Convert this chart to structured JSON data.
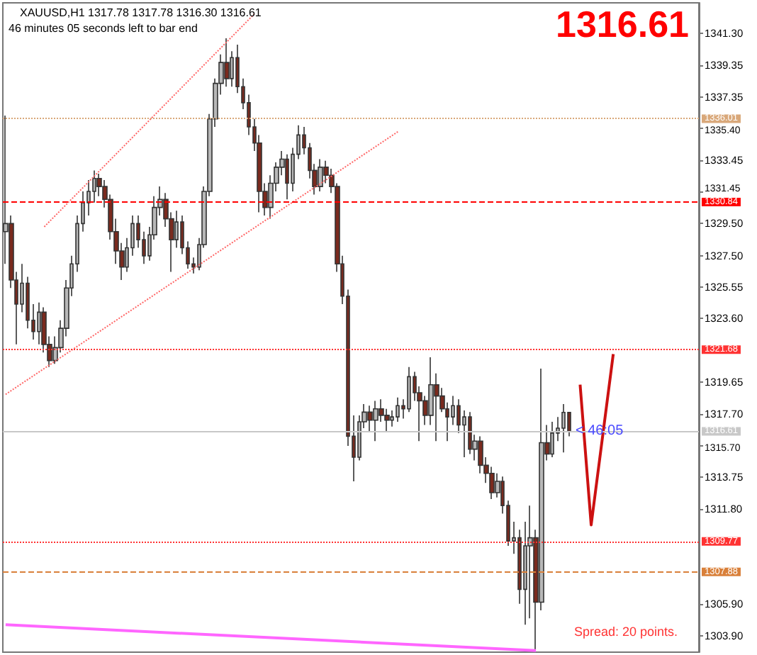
{
  "chart_data": {
    "type": "candlestick",
    "categories": [
      null,
      null,
      null,
      null,
      null,
      null,
      null,
      null,
      null,
      null,
      null,
      null,
      null,
      null,
      null,
      null,
      null,
      null,
      null,
      null,
      null,
      null,
      null,
      null,
      null,
      null,
      null,
      null,
      null,
      null,
      null,
      null,
      null,
      null,
      null,
      null,
      null,
      null,
      null,
      null,
      null,
      null,
      null,
      null,
      null,
      null,
      null,
      null,
      null,
      null,
      null,
      null,
      null,
      null,
      null,
      null,
      null,
      null,
      null,
      null,
      null,
      null,
      null,
      null,
      null,
      null,
      null,
      null,
      null,
      null,
      null,
      null,
      null,
      null,
      null,
      null,
      null,
      null,
      null,
      null,
      null,
      null,
      null,
      null,
      null,
      null,
      null,
      null,
      null,
      null,
      null,
      null,
      null,
      null,
      null,
      null,
      null,
      null,
      null,
      null,
      null,
      null,
      null,
      null,
      null,
      null,
      null,
      null,
      null,
      null,
      null,
      null,
      null,
      null,
      null,
      null,
      null,
      null,
      null,
      null,
      null,
      null,
      null,
      null,
      null,
      null
    ],
    "ylim": [
      1302.9,
      1343.2
    ],
    "yticks": [
      {
        "value": 1303.9,
        "label": "1303.90"
      },
      {
        "value": 1305.9,
        "label": "1305.90"
      },
      {
        "value": 1311.8,
        "label": "1311.80"
      },
      {
        "value": 1313.75,
        "label": "1313.75"
      },
      {
        "value": 1315.7,
        "label": "1315.70"
      },
      {
        "value": 1317.7,
        "label": "1317.70"
      },
      {
        "value": 1319.65,
        "label": "1319.65"
      },
      {
        "value": 1323.6,
        "label": "1323.60"
      },
      {
        "value": 1325.55,
        "label": "1325.55"
      },
      {
        "value": 1327.5,
        "label": "1327.50"
      },
      {
        "value": 1329.5,
        "label": "1329.50"
      },
      {
        "value": 1331.45,
        "label": "1331.45"
      },
      {
        "value": 1333.45,
        "label": "1333.45"
      },
      {
        "value": 1335.4,
        "label": "1335.40"
      },
      {
        "value": 1337.35,
        "label": "1337.35"
      },
      {
        "value": 1339.35,
        "label": "1339.35"
      },
      {
        "value": 1341.3,
        "label": "1341.30"
      }
    ],
    "tick_labels": "y",
    "grid": false,
    "series": [
      {
        "colors": [
          "#b8b8b8",
          "#7a2a1e",
          "#7a2a1e",
          "#b8b8b8",
          "#7a2a1e",
          "#7a2a1e",
          "#b8b8b8",
          "#7a2a1e",
          "#7a2a1e",
          "#b8b8b8",
          "#b8b8b8",
          "#b8b8b8",
          "#b8b8b8",
          "#b8b8b8",
          "#b8b8b8",
          "#b8b8b8",
          "#b8b8b8",
          "#7a2a1e",
          "#7a2a1e",
          "#7a2a1e",
          "#7a2a1e",
          "#7a2a1e",
          "#b8b8b8",
          "#b8b8b8",
          "#7a2a1e",
          "#7a2a1e",
          "#b8b8b8",
          "#b8b8b8",
          "#b8b8b8",
          "#7a2a1e",
          "#7a2a1e",
          "#b8b8b8",
          "#7a2a1e",
          "#7a2a1e",
          "#7a2a1e",
          "#b8b8b8",
          "#b8b8b8",
          "#b8b8b8",
          "#b8b8b8",
          "#b8b8b8",
          "#7a2a1e",
          "#b8b8b8",
          "#7a2a1e",
          "#7a2a1e",
          "#7a2a1e",
          "#7a2a1e",
          "#7a2a1e",
          "#7a2a1e",
          "#b8b8b8",
          "#b8b8b8",
          "#b8b8b8",
          "#7a2a1e",
          "#b8b8b8",
          "#b8b8b8",
          "#7a2a1e",
          "#7a2a1e",
          "#7a2a1e",
          "#b8b8b8",
          "#7a2a1e",
          "#7a2a1e",
          "#7a2a1e",
          "#7a2a1e",
          "#7a2a1e",
          "#7a2a1e",
          "#b8b8b8",
          "#b8b8b8",
          "#7a2a1e",
          "#b8b8b8",
          "#7a2a1e",
          "#7a2a1e",
          "#b8b8b8",
          "#b8b8b8",
          "#7a2a1e",
          "#b8b8b8",
          "#7a2a1e",
          "#7a2a1e",
          "#7a2a1e",
          "#b8b8b8",
          "#7a2a1e",
          "#7a2a1e",
          "#7a2a1e",
          "#b8b8b8",
          "#7a2a1e",
          "#b8b8b8",
          "#7a2a1e",
          "#b8b8b8",
          "#7a2a1e",
          "#7a2a1e",
          "#7a2a1e",
          "#b8b8b8",
          "#7a2a1e",
          "#7a2a1e",
          "#b8b8b8",
          "#7a2a1e",
          "#b8b8b8",
          "#b8b8b8",
          "#7a2a1e",
          "#b8b8b8",
          "#7a2a1e",
          "#b8b8b8",
          "#b8b8b8",
          "#b8b8b8",
          "#7a2a1e",
          null,
          null,
          null,
          null,
          null,
          null,
          null,
          null,
          null,
          null,
          null,
          null,
          null,
          null,
          null,
          null,
          null,
          null,
          null,
          null,
          null,
          null,
          null
        ],
        "ohlc": [
          [
            1329.0,
            1336.2,
            1327.0,
            1329.5
          ],
          [
            1329.5,
            1330.0,
            1325.5,
            1326.0
          ],
          [
            1326.0,
            1326.5,
            1322.0,
            1324.5
          ],
          [
            1324.5,
            1327.0,
            1324.0,
            1325.8
          ],
          [
            1325.8,
            1326.2,
            1323.0,
            1323.5
          ],
          [
            1323.5,
            1324.5,
            1322.3,
            1322.8
          ],
          [
            1322.8,
            1324.6,
            1322.0,
            1324.0
          ],
          [
            1324.0,
            1324.3,
            1321.5,
            1322.0
          ],
          [
            1322.0,
            1322.5,
            1320.6,
            1321.0
          ],
          [
            1321.0,
            1322.5,
            1320.8,
            1321.8
          ],
          [
            1321.8,
            1323.5,
            1321.5,
            1323.0
          ],
          [
            1323.0,
            1326.0,
            1322.5,
            1325.5
          ],
          [
            1325.5,
            1327.5,
            1325.0,
            1327.0
          ],
          [
            1327.0,
            1330.0,
            1326.5,
            1329.5
          ],
          [
            1329.5,
            1331.5,
            1329.0,
            1330.8
          ],
          [
            1330.8,
            1332.2,
            1330.0,
            1331.5
          ],
          [
            1331.5,
            1332.8,
            1330.8,
            1332.3
          ],
          [
            1332.3,
            1332.6,
            1331.2,
            1331.8
          ],
          [
            1331.8,
            1332.2,
            1330.5,
            1331.0
          ],
          [
            1331.0,
            1331.3,
            1328.5,
            1329.0
          ],
          [
            1329.0,
            1329.8,
            1327.0,
            1327.8
          ],
          [
            1327.8,
            1328.3,
            1326.0,
            1326.8
          ],
          [
            1326.8,
            1328.6,
            1326.5,
            1328.0
          ],
          [
            1328.0,
            1330.0,
            1327.5,
            1329.5
          ],
          [
            1329.5,
            1330.0,
            1328.0,
            1328.5
          ],
          [
            1328.5,
            1329.0,
            1327.0,
            1327.5
          ],
          [
            1327.5,
            1329.3,
            1327.2,
            1328.8
          ],
          [
            1328.8,
            1331.2,
            1328.5,
            1330.5
          ],
          [
            1330.5,
            1331.8,
            1330.0,
            1331.0
          ],
          [
            1331.0,
            1331.4,
            1329.3,
            1329.8
          ],
          [
            1329.8,
            1330.2,
            1326.5,
            1328.5
          ],
          [
            1328.5,
            1330.3,
            1328.0,
            1329.6
          ],
          [
            1329.6,
            1330.0,
            1327.6,
            1328.0
          ],
          [
            1328.0,
            1328.4,
            1326.7,
            1327.0
          ],
          [
            1327.0,
            1327.4,
            1326.4,
            1326.8
          ],
          [
            1326.8,
            1328.6,
            1326.6,
            1328.2
          ],
          [
            1328.2,
            1331.8,
            1328.0,
            1331.5
          ],
          [
            1331.5,
            1336.3,
            1331.2,
            1336.0
          ],
          [
            1336.0,
            1338.5,
            1335.5,
            1338.2
          ],
          [
            1338.2,
            1340.0,
            1337.5,
            1339.5
          ],
          [
            1339.5,
            1341.0,
            1338.0,
            1338.5
          ],
          [
            1338.5,
            1340.2,
            1338.0,
            1339.8
          ],
          [
            1339.8,
            1340.6,
            1337.6,
            1338.0
          ],
          [
            1338.0,
            1338.5,
            1336.6,
            1337.0
          ],
          [
            1337.0,
            1337.5,
            1335.0,
            1335.5
          ],
          [
            1335.5,
            1336.0,
            1334.0,
            1334.5
          ],
          [
            1334.5,
            1335.0,
            1330.2,
            1331.5
          ],
          [
            1331.5,
            1332.0,
            1330.0,
            1330.5
          ],
          [
            1330.5,
            1332.5,
            1329.8,
            1332.0
          ],
          [
            1332.0,
            1333.3,
            1331.5,
            1333.0
          ],
          [
            1333.0,
            1334.0,
            1332.5,
            1333.5
          ],
          [
            1333.5,
            1333.8,
            1331.0,
            1332.0
          ],
          [
            1332.0,
            1334.2,
            1331.5,
            1333.8
          ],
          [
            1333.8,
            1335.6,
            1333.5,
            1335.0
          ],
          [
            1335.0,
            1335.5,
            1333.8,
            1334.2
          ],
          [
            1334.2,
            1334.5,
            1332.3,
            1332.8
          ],
          [
            1332.8,
            1333.2,
            1331.3,
            1331.8
          ],
          [
            1331.8,
            1333.5,
            1331.5,
            1333.0
          ],
          [
            1333.0,
            1333.4,
            1332.0,
            1332.5
          ],
          [
            1332.5,
            1332.9,
            1331.4,
            1331.8
          ],
          [
            1331.8,
            1332.0,
            1326.5,
            1327.0
          ],
          [
            1327.0,
            1327.5,
            1324.5,
            1325.0
          ],
          [
            1325.0,
            1325.4,
            1315.7,
            1316.3
          ],
          [
            1316.3,
            1317.6,
            1313.5,
            1315.0
          ],
          [
            1315.0,
            1317.6,
            1314.8,
            1317.2
          ],
          [
            1317.2,
            1318.3,
            1316.8,
            1317.8
          ],
          [
            1317.8,
            1318.2,
            1316.6,
            1317.3
          ],
          [
            1317.3,
            1318.5,
            1316.0,
            1318.0
          ],
          [
            1318.0,
            1318.6,
            1317.2,
            1317.6
          ],
          [
            1317.6,
            1318.0,
            1316.6,
            1317.3
          ],
          [
            1317.3,
            1317.9,
            1316.9,
            1317.5
          ],
          [
            1317.5,
            1318.7,
            1317.2,
            1318.2
          ],
          [
            1318.2,
            1318.6,
            1317.4,
            1318.0
          ],
          [
            1318.0,
            1320.6,
            1317.8,
            1320.0
          ],
          [
            1320.0,
            1320.3,
            1318.5,
            1319.0
          ],
          [
            1319.0,
            1319.4,
            1316.0,
            1318.5
          ],
          [
            1318.5,
            1318.8,
            1317.0,
            1317.6
          ],
          [
            1317.6,
            1321.2,
            1317.0,
            1319.5
          ],
          [
            1319.5,
            1320.2,
            1316.0,
            1318.8
          ],
          [
            1318.8,
            1319.3,
            1317.8,
            1318.0
          ],
          [
            1318.0,
            1318.4,
            1316.0,
            1317.5
          ],
          [
            1317.5,
            1318.8,
            1317.0,
            1318.2
          ],
          [
            1318.2,
            1318.6,
            1316.5,
            1317.0
          ],
          [
            1317.0,
            1317.9,
            1315.0,
            1317.5
          ],
          [
            1317.5,
            1317.8,
            1315.2,
            1315.5
          ],
          [
            1315.5,
            1316.4,
            1314.8,
            1316.0
          ],
          [
            1316.0,
            1316.3,
            1314.0,
            1314.5
          ],
          [
            1314.5,
            1315.0,
            1313.4,
            1314.0
          ],
          [
            1314.0,
            1314.4,
            1312.4,
            1312.8
          ],
          [
            1312.8,
            1314.0,
            1312.5,
            1313.5
          ],
          [
            1313.5,
            1313.8,
            1311.5,
            1312.0
          ],
          [
            1312.0,
            1312.3,
            1309.5,
            1309.8
          ],
          [
            1309.8,
            1311.0,
            1309.0,
            1310.0
          ],
          [
            1310.0,
            1310.5,
            1305.9,
            1306.8
          ],
          [
            1306.8,
            1311.0,
            1304.6,
            1309.5
          ],
          [
            1309.5,
            1312.0,
            1305.0,
            1310.0
          ],
          [
            1310.0,
            1310.5,
            1302.95,
            1306.0
          ],
          [
            1306.0,
            1320.5,
            1305.5,
            1315.9
          ],
          [
            1315.9,
            1317.0,
            1314.8,
            1315.2
          ],
          [
            1315.2,
            1317.2,
            1315.0,
            1316.5
          ],
          [
            1316.5,
            1317.5,
            1316.0,
            1316.8
          ],
          [
            1316.8,
            1318.3,
            1315.3,
            1317.78
          ],
          [
            1317.78,
            1317.78,
            1316.3,
            1316.61
          ],
          null,
          null,
          null,
          null,
          null,
          null,
          null,
          null,
          null,
          null,
          null,
          null,
          null,
          null,
          null,
          null,
          null,
          null,
          null,
          null,
          null,
          null,
          null
        ]
      },
      {
        "type": "line",
        "color": "#ff6666",
        "line_style": "dotted",
        "values": [
          null,
          null,
          null,
          null,
          null,
          null,
          null,
          1329.3,
          null,
          null,
          null,
          null,
          null,
          null,
          null,
          null,
          null,
          null,
          null,
          null,
          null,
          null,
          null,
          null,
          null,
          null,
          null,
          null,
          null,
          null,
          null,
          null,
          null,
          null,
          null,
          null,
          null,
          null,
          null,
          null,
          null,
          null,
          null,
          null,
          null,
          1342.5,
          null,
          null,
          null,
          null,
          null,
          null,
          null,
          null,
          null,
          null,
          null,
          null,
          null,
          null,
          null,
          null,
          null,
          null,
          null,
          null,
          null,
          null,
          null,
          null,
          null,
          null,
          null,
          null,
          null,
          null,
          null,
          null,
          null,
          null,
          null,
          null,
          null,
          null,
          null,
          null,
          null,
          null,
          null,
          null,
          null,
          null,
          null,
          null,
          null,
          null,
          null,
          null,
          null,
          null,
          null,
          null,
          null,
          null,
          null,
          null,
          null,
          null,
          null,
          null,
          null,
          null,
          null,
          null,
          null,
          null,
          null,
          null,
          null,
          null,
          null,
          null,
          null,
          null,
          null,
          null
        ]
      },
      {
        "type": "line",
        "color": "#ff6666",
        "line_style": "dotted",
        "values": [
          1318.9,
          null,
          null,
          null,
          null,
          null,
          null,
          null,
          null,
          null,
          null,
          null,
          null,
          null,
          null,
          null,
          null,
          null,
          null,
          null,
          null,
          null,
          null,
          null,
          null,
          null,
          null,
          null,
          null,
          null,
          null,
          null,
          null,
          null,
          null,
          null,
          null,
          null,
          null,
          null,
          null,
          null,
          null,
          null,
          null,
          null,
          null,
          null,
          null,
          null,
          null,
          null,
          null,
          null,
          null,
          null,
          null,
          null,
          null,
          null,
          null,
          null,
          null,
          null,
          null,
          null,
          null,
          null,
          null,
          null,
          null,
          1335.2,
          null,
          null,
          null,
          null,
          null,
          null,
          null,
          null,
          null,
          null,
          null,
          null,
          null,
          null,
          null,
          null,
          null,
          null,
          null,
          null,
          null,
          null,
          null,
          null,
          null,
          null,
          null,
          null,
          null,
          null,
          null,
          null,
          null,
          null,
          null,
          null,
          null,
          null,
          null,
          null,
          null,
          null,
          null,
          null,
          null,
          null,
          null,
          null,
          null,
          null,
          null,
          null,
          null,
          null
        ]
      },
      {
        "type": "line",
        "color": "#ff66ff",
        "line_style": "solid",
        "values": [
          1304.6,
          null,
          null,
          null,
          null,
          null,
          null,
          null,
          null,
          null,
          null,
          null,
          null,
          null,
          null,
          null,
          null,
          null,
          null,
          null,
          null,
          null,
          null,
          null,
          null,
          null,
          null,
          null,
          null,
          null,
          null,
          null,
          null,
          null,
          null,
          null,
          null,
          null,
          null,
          null,
          null,
          null,
          null,
          null,
          null,
          null,
          null,
          null,
          null,
          null,
          null,
          null,
          null,
          null,
          null,
          null,
          null,
          null,
          null,
          null,
          null,
          null,
          null,
          null,
          null,
          null,
          null,
          null,
          null,
          null,
          null,
          null,
          null,
          null,
          null,
          null,
          null,
          null,
          null,
          null,
          null,
          null,
          null,
          null,
          null,
          null,
          null,
          null,
          null,
          null,
          null,
          null,
          null,
          null,
          null,
          null,
          1303.0,
          null,
          null,
          null,
          null,
          null,
          null,
          null,
          null,
          null,
          null,
          null,
          null,
          null,
          null,
          null,
          null,
          null,
          null,
          null,
          null,
          null,
          null,
          null,
          null,
          null,
          null,
          null,
          null,
          null
        ]
      },
      {
        "type": "line",
        "color": "#cc1111",
        "line_style": "solid",
        "values": [
          null,
          null,
          null,
          null,
          null,
          null,
          null,
          null,
          null,
          null,
          null,
          null,
          null,
          null,
          null,
          null,
          null,
          null,
          null,
          null,
          null,
          null,
          null,
          null,
          null,
          null,
          null,
          null,
          null,
          null,
          null,
          null,
          null,
          null,
          null,
          null,
          null,
          null,
          null,
          null,
          null,
          null,
          null,
          null,
          null,
          null,
          null,
          null,
          null,
          null,
          null,
          null,
          null,
          null,
          null,
          null,
          null,
          null,
          null,
          null,
          null,
          null,
          null,
          null,
          null,
          null,
          null,
          null,
          null,
          null,
          null,
          null,
          null,
          null,
          null,
          null,
          null,
          null,
          null,
          null,
          null,
          null,
          null,
          null,
          null,
          null,
          null,
          null,
          null,
          null,
          null,
          null,
          null,
          null,
          null,
          null,
          null,
          null,
          null,
          null,
          null,
          null,
          null,
          null,
          1319.5,
          null,
          1310.8,
          null,
          null,
          null,
          1321.4,
          null,
          null,
          null,
          null,
          null,
          null,
          null,
          null,
          null,
          null,
          null,
          null,
          null,
          null,
          null
        ]
      }
    ],
    "ref_lines": [
      {
        "axis": "y",
        "value": 1336.01,
        "label": "1336.01",
        "color": "#d9a87a",
        "line_style": "dotted"
      },
      {
        "axis": "y",
        "value": 1330.84,
        "label": "1330.84",
        "color": "#ff0000",
        "line_style": "dashed"
      },
      {
        "axis": "y",
        "value": 1321.68,
        "label": "1321.68",
        "color": "#ff3333",
        "line_style": "dotted"
      },
      {
        "axis": "y",
        "value": 1316.61,
        "label": "1316.61",
        "color": "#c8c8c8",
        "line_style": "solid"
      },
      {
        "axis": "y",
        "value": 1309.77,
        "label": "1309.77",
        "color": "#ff3333",
        "line_style": "dotted"
      },
      {
        "axis": "y",
        "value": 1307.88,
        "label": "1307.88",
        "color": "#d9803a",
        "line_style": "dashed"
      }
    ],
    "annotations": [
      "XAUUSD,H1 1317.78 1317.78 1316.30 1316.61",
      "46 minutes 05 seconds left to bar end",
      "1316.61",
      "< 46:05",
      "Spread: 20 points."
    ]
  }
}
